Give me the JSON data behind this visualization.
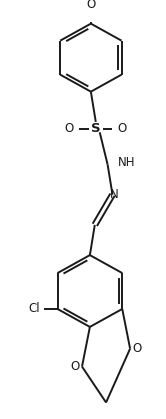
{
  "bg_color": "#ffffff",
  "line_color": "#1a1a1a",
  "line_width": 1.4,
  "figsize": [
    1.66,
    4.19
  ],
  "dpi": 100,
  "xlim": [
    0,
    166
  ],
  "ylim": [
    0,
    419
  ]
}
